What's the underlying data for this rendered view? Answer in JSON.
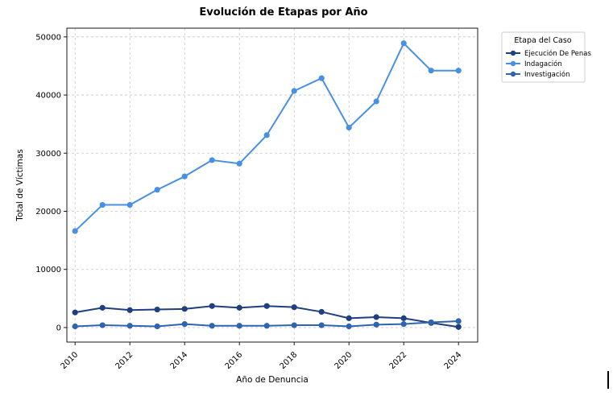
{
  "chart_data": {
    "type": "line",
    "title": "Evolución de Etapas por Año",
    "xlabel": "Año de Denuncia",
    "ylabel": "Total de Víctimas",
    "x": [
      2010,
      2011,
      2012,
      2013,
      2014,
      2015,
      2016,
      2017,
      2018,
      2019,
      2020,
      2021,
      2022,
      2023,
      2024
    ],
    "xticks": [
      "2010",
      "2012",
      "2014",
      "2016",
      "2018",
      "2020",
      "2022",
      "2024"
    ],
    "yticks": [
      "0",
      "10000",
      "20000",
      "30000",
      "40000",
      "50000"
    ],
    "xlim": [
      2009.7,
      2024.7
    ],
    "ylim": [
      -2500,
      51500
    ],
    "grid": true,
    "legend": {
      "title": "Etapa del Caso",
      "placement": "outside-right"
    },
    "series": [
      {
        "name": "Ejecución De Penas",
        "color": "#1f3f7f",
        "values": [
          2600,
          3400,
          3000,
          3100,
          3200,
          3700,
          3400,
          3700,
          3500,
          2700,
          1600,
          1800,
          1600,
          800,
          100
        ]
      },
      {
        "name": "Indagación",
        "color": "#4a90e2",
        "values": [
          16600,
          21100,
          21100,
          23700,
          26000,
          28800,
          28200,
          33100,
          40700,
          42900,
          34400,
          38900,
          48900,
          44200,
          44200
        ]
      },
      {
        "name": "Investigación",
        "color": "#2e64b0",
        "values": [
          200,
          400,
          300,
          200,
          600,
          300,
          300,
          300,
          400,
          400,
          200,
          500,
          600,
          900,
          1100
        ]
      }
    ]
  }
}
